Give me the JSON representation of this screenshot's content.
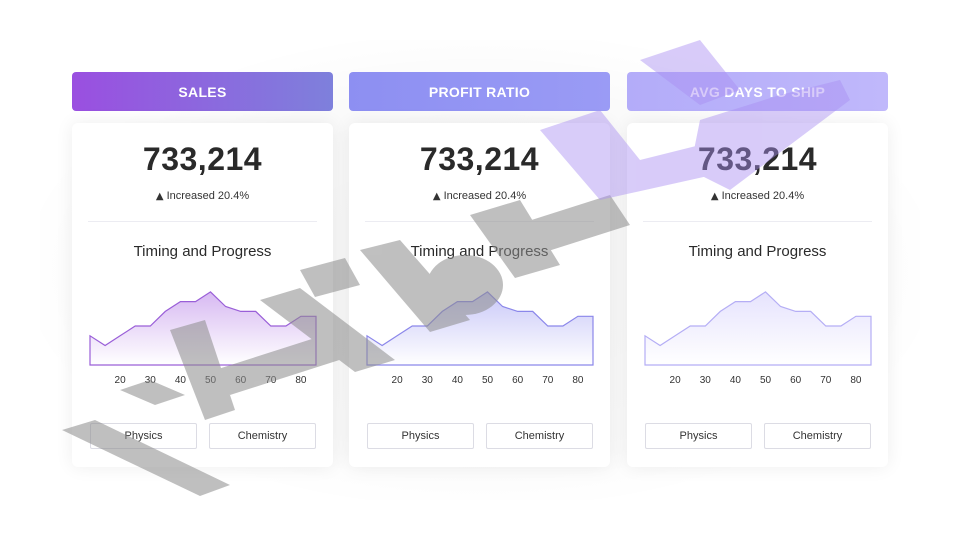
{
  "cards": [
    {
      "title": "SALES",
      "value": "733,214",
      "change": "Increased 20.4%",
      "chart_title": "Timing and Progress",
      "buttons": [
        "Physics",
        "Chemistry"
      ]
    },
    {
      "title": "PROFIT RATIO",
      "value": "733,214",
      "change": "Increased 20.4%",
      "chart_title": "Timing and Progress",
      "buttons": [
        "Physics",
        "Chemistry"
      ]
    },
    {
      "title": "AVG DAYS TO SHIP",
      "value": "733,214",
      "change": "Increased 20.4%",
      "chart_title": "Timing and Progress",
      "buttons": [
        "Physics",
        "Chemistry"
      ]
    }
  ],
  "colors": {
    "chart_fill_1": "#d7b9f2",
    "chart_stroke_1": "#9a5fd8",
    "chart_fill_2": "#c9c8f8",
    "chart_stroke_2": "#8b87ea",
    "chart_fill_3": "#e6e3fd",
    "chart_stroke_3": "#b5aef5"
  },
  "chart_data": [
    {
      "type": "area",
      "x": [
        10,
        15,
        20,
        25,
        30,
        35,
        40,
        45,
        50,
        55,
        60,
        65,
        70,
        75,
        80,
        85
      ],
      "values": [
        6,
        4,
        6,
        8,
        8,
        11,
        13,
        13,
        15,
        12,
        11,
        11,
        8,
        8,
        10,
        10
      ],
      "xticks": [
        20,
        30,
        40,
        50,
        60,
        70,
        80
      ],
      "title": "Timing and Progress"
    },
    {
      "type": "area",
      "x": [
        10,
        15,
        20,
        25,
        30,
        35,
        40,
        45,
        50,
        55,
        60,
        65,
        70,
        75,
        80,
        85
      ],
      "values": [
        6,
        4,
        6,
        8,
        8,
        11,
        13,
        13,
        15,
        12,
        11,
        11,
        8,
        8,
        10,
        10
      ],
      "xticks": [
        20,
        30,
        40,
        50,
        60,
        70,
        80
      ],
      "title": "Timing and Progress"
    },
    {
      "type": "area",
      "x": [
        10,
        15,
        20,
        25,
        30,
        35,
        40,
        45,
        50,
        55,
        60,
        65,
        70,
        75,
        80,
        85
      ],
      "values": [
        6,
        4,
        6,
        8,
        8,
        11,
        13,
        13,
        15,
        12,
        11,
        11,
        8,
        8,
        10,
        10
      ],
      "xticks": [
        20,
        30,
        40,
        50,
        60,
        70,
        80
      ],
      "title": "Timing and Progress"
    }
  ]
}
